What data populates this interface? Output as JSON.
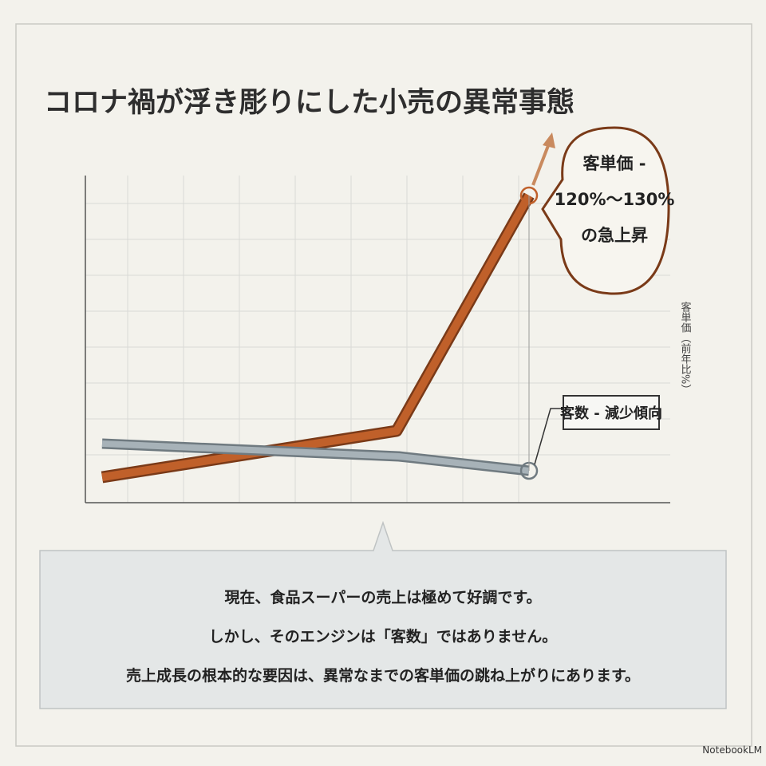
{
  "header": {
    "title": "コロナ禍が浮き彫りにした小売の異常事態"
  },
  "chart": {
    "callout_price": {
      "lines": [
        "客単価 -",
        "120%～130%",
        "の急上昇"
      ]
    },
    "callout_customers": "客数 - 減少傾向",
    "axis_label": "客単価（前年比%）"
  },
  "message": {
    "lines": [
      "現在、食品スーパーの売上は極めて好調です。",
      "しかし、そのエンジンは「客数」ではありません。",
      "売上成長の根本的な要因は、異常なまでの客単価の跳ね上がりにあります。"
    ]
  },
  "footer": {
    "brand": "NotebookLM"
  }
}
